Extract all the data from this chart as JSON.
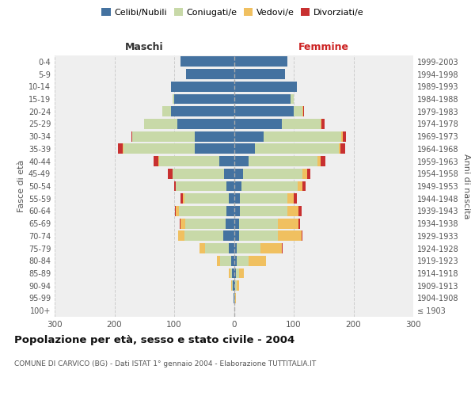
{
  "age_groups": [
    "100+",
    "95-99",
    "90-94",
    "85-89",
    "80-84",
    "75-79",
    "70-74",
    "65-69",
    "60-64",
    "55-59",
    "50-54",
    "45-49",
    "40-44",
    "35-39",
    "30-34",
    "25-29",
    "20-24",
    "15-19",
    "10-14",
    "5-9",
    "0-4"
  ],
  "birth_years": [
    "≤ 1903",
    "1904-1908",
    "1909-1913",
    "1914-1918",
    "1919-1923",
    "1924-1928",
    "1929-1933",
    "1934-1938",
    "1939-1943",
    "1944-1948",
    "1949-1953",
    "1954-1958",
    "1959-1963",
    "1964-1968",
    "1969-1973",
    "1974-1978",
    "1979-1983",
    "1984-1988",
    "1989-1993",
    "1994-1998",
    "1999-2003"
  ],
  "maschi": {
    "celibi": [
      0,
      1,
      2,
      3,
      5,
      9,
      18,
      14,
      12,
      8,
      12,
      17,
      25,
      65,
      65,
      95,
      105,
      100,
      105,
      80,
      90
    ],
    "coniugati": [
      0,
      0,
      1,
      3,
      18,
      40,
      65,
      68,
      80,
      75,
      85,
      85,
      100,
      120,
      105,
      55,
      15,
      2,
      0,
      0,
      0
    ],
    "vedovi": [
      0,
      0,
      1,
      2,
      5,
      8,
      10,
      8,
      5,
      2,
      1,
      1,
      1,
      1,
      0,
      0,
      0,
      0,
      0,
      0,
      0
    ],
    "divorziati": [
      0,
      0,
      0,
      0,
      0,
      1,
      1,
      1,
      2,
      4,
      2,
      8,
      8,
      8,
      2,
      0,
      0,
      0,
      0,
      0,
      0
    ]
  },
  "femmine": {
    "nubili": [
      0,
      1,
      2,
      3,
      4,
      5,
      8,
      8,
      10,
      10,
      12,
      15,
      25,
      35,
      50,
      80,
      100,
      95,
      105,
      85,
      90
    ],
    "coniugate": [
      0,
      1,
      3,
      5,
      20,
      40,
      65,
      65,
      80,
      80,
      95,
      100,
      115,
      140,
      130,
      65,
      15,
      5,
      0,
      0,
      0
    ],
    "vedove": [
      0,
      1,
      4,
      8,
      30,
      35,
      40,
      35,
      18,
      10,
      8,
      8,
      5,
      3,
      2,
      2,
      1,
      0,
      0,
      0,
      0
    ],
    "divorziate": [
      0,
      0,
      0,
      0,
      0,
      1,
      2,
      2,
      5,
      5,
      5,
      5,
      8,
      8,
      5,
      5,
      1,
      0,
      0,
      0,
      0
    ]
  },
  "colors": {
    "celibi_nubili": "#4472a0",
    "coniugati": "#c8d9a8",
    "vedovi": "#f0c060",
    "divorziati": "#c83030"
  },
  "xlim": 300,
  "title": "Popolazione per età, sesso e stato civile - 2004",
  "subtitle": "COMUNE DI CARVICO (BG) - Dati ISTAT 1° gennaio 2004 - Elaborazione TUTTITALIA.IT",
  "label_maschi": "Maschi",
  "label_femmine": "Femmine",
  "ylabel_left": "Fasce di età",
  "ylabel_right": "Anni di nascita",
  "legend_labels": [
    "Celibi/Nubili",
    "Coniugati/e",
    "Vedovi/e",
    "Divorziati/e"
  ],
  "bg_color": "#ffffff",
  "plot_bg_color": "#efefef"
}
